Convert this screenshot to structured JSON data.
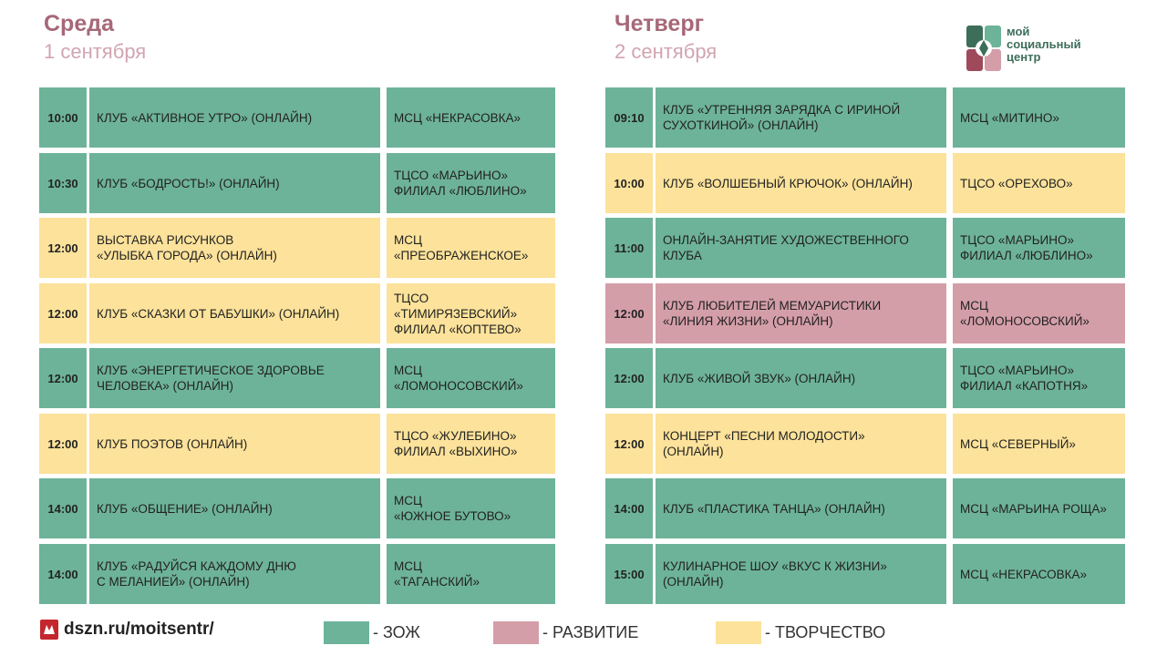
{
  "logo": {
    "text": "мой\nсоциальный\nцентр",
    "colors": [
      "#3d6e5a",
      "#9e4a5a",
      "#6db399",
      "#d49ea8"
    ]
  },
  "colors": {
    "zozh": "#6db399",
    "razvitie": "#d49ea8",
    "tvorchestvo": "#fce29a",
    "title": "#a66878"
  },
  "days": [
    {
      "title": "Среда",
      "date": "1 сентября",
      "events": [
        {
          "time": "10:00",
          "event": "КЛУБ «АКТИВНОЕ УТРО» (ОНЛАЙН)",
          "place": "МСЦ «НЕКРАСОВКА»",
          "category": "zozh"
        },
        {
          "time": "10:30",
          "event": "КЛУБ «БОДРОСТЬ!» (ОНЛАЙН)",
          "place": "ТЦСО «МАРЬИНО»\nФИЛИАЛ «ЛЮБЛИНО»",
          "category": "zozh"
        },
        {
          "time": "12:00",
          "event": "ВЫСТАВКА РИСУНКОВ\n«УЛЫБКА ГОРОДА» (ОНЛАЙН)",
          "place": "МСЦ\n«ПРЕОБРАЖЕНСКОЕ»",
          "category": "tvorchestvo"
        },
        {
          "time": "12:00",
          "event": " КЛУБ «СКАЗКИ ОТ БАБУШКИ» (ОНЛАЙН)",
          "place": "ТЦСО\n«ТИМИРЯЗЕВСКИЙ»\nФИЛИАЛ «КОПТЕВО»",
          "category": "tvorchestvo"
        },
        {
          "time": "12:00",
          "event": "КЛУБ «ЭНЕРГЕТИЧЕСКОЕ ЗДОРОВЬЕ\nЧЕЛОВЕКА» (ОНЛАЙН)",
          "place": "МСЦ\n«ЛОМОНОСОВСКИЙ»",
          "category": "zozh"
        },
        {
          "time": "12:00",
          "event": "КЛУБ ПОЭТОВ (ОНЛАЙН)",
          "place": "ТЦСО «ЖУЛЕБИНО»\nФИЛИАЛ «ВЫХИНО»",
          "category": "tvorchestvo"
        },
        {
          "time": "14:00",
          "event": "КЛУБ «ОБЩЕНИЕ» (ОНЛАЙН)",
          "place": "МСЦ\n«ЮЖНОЕ БУТОВО»",
          "category": "zozh"
        },
        {
          "time": "14:00",
          "event": "КЛУБ «РАДУЙСЯ КАЖДОМУ ДНЮ\nС МЕЛАНИЕЙ» (ОНЛАЙН)",
          "place": "МСЦ\n«ТАГАНСКИЙ»",
          "category": "zozh"
        }
      ]
    },
    {
      "title": "Четверг",
      "date": "2 сентября",
      "events": [
        {
          "time": "09:10",
          "event": "КЛУБ «УТРЕННЯЯ ЗАРЯДКА С ИРИНОЙ\nСУХОТКИНОЙ» (ОНЛАЙН)",
          "place": "МСЦ «МИТИНО»",
          "category": "zozh"
        },
        {
          "time": "10:00",
          "event": "КЛУБ «ВОЛШЕБНЫЙ КРЮЧОК» (ОНЛАЙН)",
          "place": "ТЦСО «ОРЕХОВО»",
          "category": "tvorchestvo"
        },
        {
          "time": "11:00",
          "event": "ОНЛАЙН-ЗАНЯТИЕ ХУДОЖЕСТВЕННОГО\nКЛУБА",
          "place": "ТЦСО «МАРЬИНО»\nФИЛИАЛ «ЛЮБЛИНО»",
          "category": "zozh"
        },
        {
          "time": "12:00",
          "event": "КЛУБ ЛЮБИТЕЛЕЙ МЕМУАРИСТИКИ\n«ЛИНИЯ ЖИЗНИ» (ОНЛАЙН)",
          "place": "МСЦ\n«ЛОМОНОСОВСКИЙ»",
          "category": "razvitie"
        },
        {
          "time": "12:00",
          "event": "КЛУБ «ЖИВОЙ ЗВУК» (ОНЛАЙН)",
          "place": "ТЦСО «МАРЬИНО»\nФИЛИАЛ «КАПОТНЯ»",
          "category": "zozh"
        },
        {
          "time": "12:00",
          "event": "КОНЦЕРТ «ПЕСНИ МОЛОДОСТИ»\n(ОНЛАЙН)",
          "place": "МСЦ «СЕВЕРНЫЙ»",
          "category": "tvorchestvo"
        },
        {
          "time": "14:00",
          "event": " КЛУБ «ПЛАСТИКА ТАНЦА» (ОНЛАЙН)",
          "place": "МСЦ «МАРЬИНА РОЩА»",
          "category": "zozh"
        },
        {
          "time": "15:00",
          "event": "КУЛИНАРНОЕ ШОУ «ВКУС К ЖИЗНИ»\n(ОНЛАЙН)",
          "place": "МСЦ «НЕКРАСОВКА»",
          "category": "zozh"
        }
      ]
    }
  ],
  "footer": {
    "site": "dszn.ru/moitsentr/",
    "site_icon": "moscow-emblem-icon"
  },
  "legend": [
    {
      "category": "zozh",
      "label": "- ЗОЖ"
    },
    {
      "category": "razvitie",
      "label": "- РАЗВИТИЕ"
    },
    {
      "category": "tvorchestvo",
      "label": "- ТВОРЧЕСТВО"
    }
  ]
}
